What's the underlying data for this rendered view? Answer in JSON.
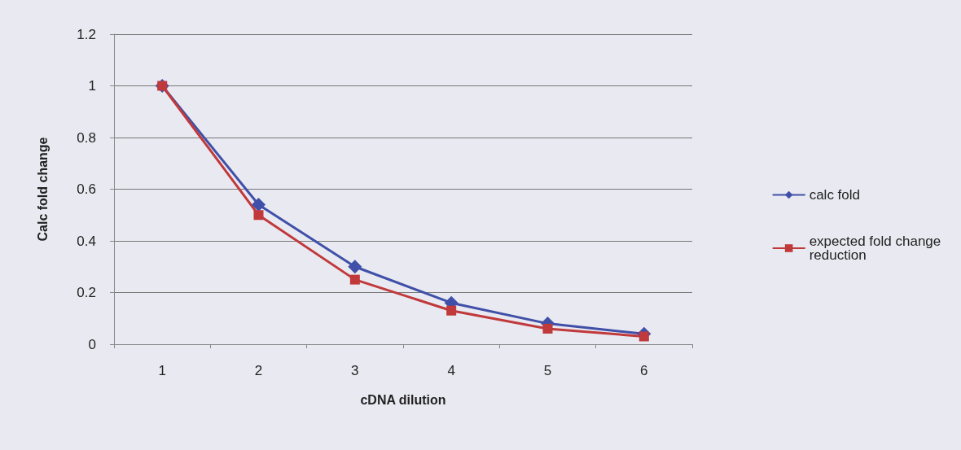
{
  "chart_data": {
    "type": "line",
    "xlabel": "cDNA dilution",
    "ylabel": "Calc fold change",
    "categories": [
      "1",
      "2",
      "3",
      "4",
      "5",
      "6"
    ],
    "series": [
      {
        "name": "calc fold",
        "color": "#4050a8",
        "values": [
          1,
          0.54,
          0.3,
          0.16,
          0.08,
          0.04
        ],
        "marker": "diamond"
      },
      {
        "name": "expected fold change reduction",
        "color": "#c0393b",
        "values": [
          1,
          0.5,
          0.25,
          0.13,
          0.06,
          0.03
        ],
        "marker": "square"
      }
    ],
    "ylim": [
      0,
      1.2
    ],
    "yticks": [
      0,
      0.2,
      0.4,
      0.6,
      0.8,
      1,
      1.2
    ],
    "grid": "y",
    "legend": "right",
    "line_style": "solid"
  }
}
